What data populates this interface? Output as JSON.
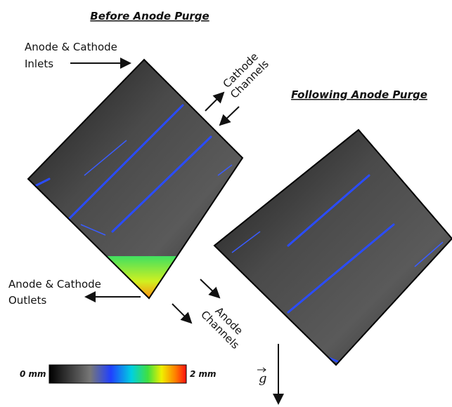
{
  "panels": [
    {
      "title": "Before Anode Purge"
    },
    {
      "title": "Following Anode Purge"
    }
  ],
  "annotations": {
    "inlets": [
      "Anode & Cathode",
      "Inlets"
    ],
    "cathode_channels": [
      "Cathode",
      "Channels"
    ],
    "outlets": [
      "Anode & Cathode",
      "Outlets"
    ],
    "anode_channels": [
      "Anode",
      "Channels"
    ]
  },
  "colorbar": {
    "min_label": "0 mm",
    "max_label": "2 mm"
  },
  "gravity_label": "g"
}
